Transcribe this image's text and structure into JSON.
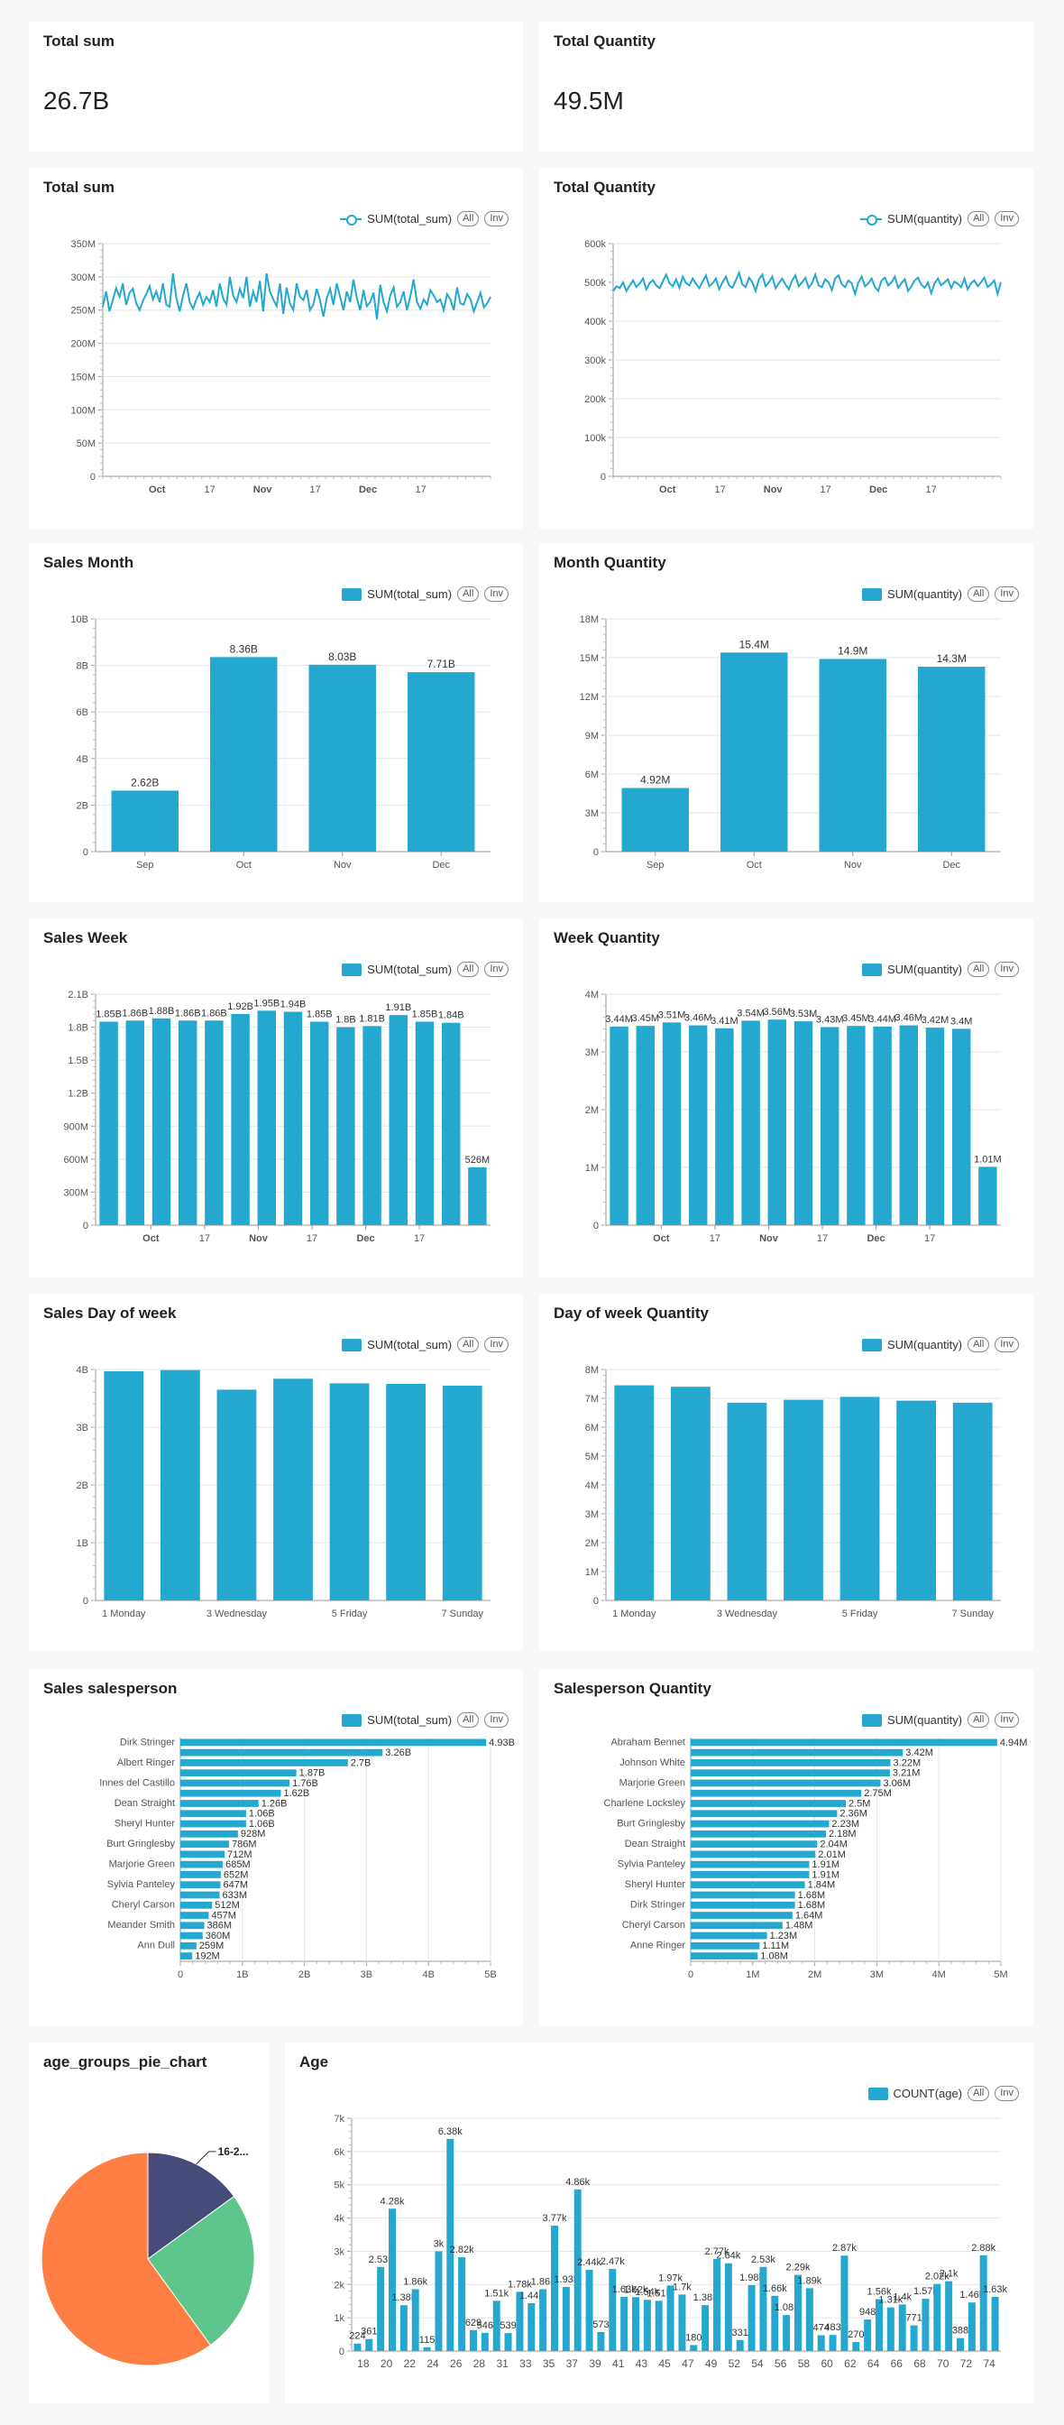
{
  "colors": {
    "bar": "#24a8cf",
    "pie_orange": "#fe7e44",
    "pie_green": "#5ec68c",
    "pie_navy": "#474b7a"
  },
  "legend_buttons": {
    "all": "All",
    "inv": "Inv"
  },
  "kpis": [
    {
      "title": "Total sum",
      "value": "26.7B"
    },
    {
      "title": "Total Quantity",
      "value": "49.5M"
    }
  ],
  "chart_data": [
    {
      "id": "total_sum_line",
      "type": "line",
      "title": "Total sum",
      "legend": "SUM(total_sum)",
      "ylim": [
        0,
        350000000
      ],
      "yticks": [
        "0",
        "50M",
        "100M",
        "150M",
        "200M",
        "250M",
        "300M",
        "350M"
      ],
      "xticks": [
        "Oct",
        "17",
        "Nov",
        "17",
        "Dec",
        "17"
      ],
      "series": [
        {
          "name": "SUM(total_sum)",
          "values": [
            255,
            278,
            248,
            265,
            283,
            270,
            290,
            258,
            276,
            282,
            260,
            250,
            264,
            274,
            286,
            266,
            278,
            262,
            290,
            258,
            255,
            305,
            268,
            248,
            272,
            290,
            262,
            252,
            266,
            276,
            258,
            270,
            262,
            280,
            255,
            290,
            268,
            258,
            300,
            272,
            262,
            282,
            268,
            300,
            255,
            278,
            262,
            294,
            248,
            305,
            278,
            266,
            256,
            290,
            244,
            284,
            260,
            250,
            290,
            270,
            265,
            280,
            250,
            258,
            282,
            265,
            240,
            268,
            282,
            258,
            290,
            270,
            250,
            278,
            262,
            296,
            268,
            250,
            280,
            256,
            262,
            276,
            236,
            288,
            262,
            248,
            272,
            284,
            255,
            262,
            278,
            250,
            270,
            296,
            262,
            252,
            266,
            258,
            280,
            272,
            262,
            266,
            250,
            274,
            266,
            250,
            284,
            260,
            258,
            274,
            266,
            248,
            262,
            276,
            254,
            260,
            270
          ]
        }
      ]
    },
    {
      "id": "total_qty_line",
      "type": "line",
      "title": "Total Quantity",
      "legend": "SUM(quantity)",
      "ylim": [
        0,
        600000
      ],
      "yticks": [
        "0",
        "100k",
        "200k",
        "300k",
        "400k",
        "500k",
        "600k"
      ],
      "xticks": [
        "Oct",
        "17",
        "Nov",
        "17",
        "Dec",
        "17"
      ],
      "series": [
        {
          "name": "SUM(quantity)",
          "values": [
            478,
            490,
            485,
            500,
            478,
            492,
            505,
            488,
            497,
            510,
            482,
            498,
            506,
            492,
            485,
            503,
            520,
            498,
            490,
            508,
            486,
            515,
            498,
            492,
            510,
            496,
            485,
            502,
            518,
            490,
            498,
            510,
            482,
            500,
            515,
            492,
            486,
            505,
            525,
            495,
            488,
            512,
            500,
            478,
            508,
            520,
            490,
            500,
            515,
            485,
            498,
            510,
            495,
            482,
            505,
            518,
            490,
            500,
            512,
            486,
            498,
            520,
            492,
            488,
            508,
            500,
            480,
            510,
            518,
            495,
            488,
            505,
            498,
            470,
            500,
            515,
            490,
            498,
            510,
            488,
            478,
            505,
            512,
            492,
            500,
            515,
            486,
            498,
            508,
            478,
            490,
            505,
            512,
            494,
            486,
            500,
            472,
            498,
            510,
            492,
            500,
            508,
            485,
            502,
            496,
            488,
            510,
            482,
            498,
            505,
            490,
            500,
            512,
            488,
            495,
            505,
            470,
            500
          ]
        }
      ]
    },
    {
      "id": "sales_month",
      "type": "bar",
      "title": "Sales Month",
      "legend": "SUM(total_sum)",
      "ylim": [
        0,
        10000000000
      ],
      "yticks": [
        "0",
        "2B",
        "4B",
        "6B",
        "8B",
        "10B"
      ],
      "categories": [
        "Sep",
        "Oct",
        "Nov",
        "Dec"
      ],
      "values": [
        2.62,
        8.36,
        8.03,
        7.71
      ],
      "labels": [
        "2.62B",
        "8.36B",
        "8.03B",
        "7.71B"
      ]
    },
    {
      "id": "month_qty",
      "type": "bar",
      "title": "Month Quantity",
      "legend": "SUM(quantity)",
      "ylim": [
        0,
        18000000
      ],
      "yticks": [
        "0",
        "3M",
        "6M",
        "9M",
        "12M",
        "15M",
        "18M"
      ],
      "categories": [
        "Sep",
        "Oct",
        "Nov",
        "Dec"
      ],
      "values": [
        4.92,
        15.4,
        14.9,
        14.3
      ],
      "labels": [
        "4.92M",
        "15.4M",
        "14.9M",
        "14.3M"
      ]
    },
    {
      "id": "sales_week",
      "type": "bar",
      "title": "Sales Week",
      "legend": "SUM(total_sum)",
      "ylim": [
        0,
        2100000000
      ],
      "yticks": [
        "0",
        "300M",
        "600M",
        "900M",
        "1.2B",
        "1.5B",
        "1.8B",
        "2.1B"
      ],
      "xticks": [
        "Oct",
        "17",
        "Nov",
        "17",
        "Dec",
        "17"
      ],
      "values": [
        1.85,
        1.86,
        1.88,
        1.86,
        1.86,
        1.92,
        1.95,
        1.94,
        1.85,
        1.8,
        1.81,
        1.91,
        1.85,
        1.84,
        0.526
      ],
      "labels": [
        "1.85B",
        "1.86B",
        "1.88B",
        "1.86B",
        "1.86B",
        "1.92B",
        "1.95B",
        "1.94B",
        "1.85B",
        "1.8B",
        "1.81B",
        "1.91B",
        "1.85B",
        "1.84B",
        "526M"
      ]
    },
    {
      "id": "week_qty",
      "type": "bar",
      "title": "Week Quantity",
      "legend": "SUM(quantity)",
      "ylim": [
        0,
        4000000
      ],
      "yticks": [
        "0",
        "1M",
        "2M",
        "3M",
        "4M"
      ],
      "xticks": [
        "Oct",
        "17",
        "Nov",
        "17",
        "Dec",
        "17"
      ],
      "values": [
        3.44,
        3.45,
        3.51,
        3.46,
        3.41,
        3.54,
        3.56,
        3.53,
        3.43,
        3.45,
        3.44,
        3.46,
        3.42,
        3.4,
        1.01
      ],
      "labels": [
        "3.44M",
        "3.45M",
        "3.51M",
        "3.46M",
        "3.41M",
        "3.54M",
        "3.56M",
        "3.53M",
        "3.43M",
        "3.45M",
        "3.44M",
        "3.46M",
        "3.42M",
        "3.4M",
        "1.01M"
      ]
    },
    {
      "id": "sales_dow",
      "type": "bar",
      "title": "Sales Day of week",
      "legend": "SUM(total_sum)",
      "ylim": [
        0,
        4000000000
      ],
      "yticks": [
        "0",
        "1B",
        "2B",
        "3B",
        "4B"
      ],
      "categories": [
        "1 Monday",
        "2 Tuesday",
        "3 Wednesday",
        "4 Thursday",
        "5 Friday",
        "6 Saturday",
        "7 Sunday"
      ],
      "xticks": [
        "1 Monday",
        "3 Wednesday",
        "5 Friday",
        "7 Sunday"
      ],
      "values": [
        3.97,
        3.99,
        3.65,
        3.84,
        3.76,
        3.75,
        3.72
      ]
    },
    {
      "id": "dow_qty",
      "type": "bar",
      "title": "Day of week Quantity",
      "legend": "SUM(quantity)",
      "ylim": [
        0,
        8000000
      ],
      "yticks": [
        "0",
        "1M",
        "2M",
        "3M",
        "4M",
        "5M",
        "6M",
        "7M",
        "8M"
      ],
      "categories": [
        "1 Monday",
        "2 Tuesday",
        "3 Wednesday",
        "4 Thursday",
        "5 Friday",
        "6 Saturday",
        "7 Sunday"
      ],
      "xticks": [
        "1 Monday",
        "3 Wednesday",
        "5 Friday",
        "7 Sunday"
      ],
      "values": [
        7.45,
        7.4,
        6.85,
        6.95,
        7.05,
        6.92,
        6.85
      ]
    },
    {
      "id": "sales_salesperson",
      "type": "hbar",
      "title": "Sales salesperson",
      "legend": "SUM(total_sum)",
      "xlim": [
        0,
        5000000000
      ],
      "xticks": [
        "0",
        "1B",
        "2B",
        "3B",
        "4B",
        "5B"
      ],
      "people": [
        "Dirk Stringer",
        "Albert Ringer",
        "Innes del Castillo",
        "Dean Straight",
        "Sheryl Hunter",
        "Burt Gringlesby",
        "Marjorie Green",
        "Sylvia Panteley",
        "Cheryl Carson",
        "Meander Smith",
        "Ann Dull"
      ],
      "values": [
        4.93,
        3.26,
        2.7,
        1.87,
        1.76,
        1.62,
        1.26,
        1.06,
        1.06,
        0.928,
        0.786,
        0.712,
        0.685,
        0.652,
        0.647,
        0.633,
        0.512,
        0.457,
        0.386,
        0.36,
        0.259,
        0.192
      ],
      "labels": [
        "4.93B",
        "3.26B",
        "2.7B",
        "1.87B",
        "1.76B",
        "1.62B",
        "1.26B",
        "1.06B",
        "1.06B",
        "928M",
        "786M",
        "712M",
        "685M",
        "652M",
        "647M",
        "633M",
        "512M",
        "457M",
        "386M",
        "360M",
        "259M",
        "192M"
      ]
    },
    {
      "id": "salesperson_qty",
      "type": "hbar",
      "title": "Salesperson Quantity",
      "legend": "SUM(quantity)",
      "xlim": [
        0,
        5000000
      ],
      "xticks": [
        "0",
        "1M",
        "2M",
        "3M",
        "4M",
        "5M"
      ],
      "people": [
        "Abraham Bennet",
        "Johnson White",
        "Marjorie Green",
        "Charlene Locksley",
        "Burt Gringlesby",
        "Dean Straight",
        "Sylvia Panteley",
        "Sheryl Hunter",
        "Dirk Stringer",
        "Cheryl Carson",
        "Anne Ringer"
      ],
      "values": [
        4.94,
        3.42,
        3.22,
        3.21,
        3.06,
        2.75,
        2.5,
        2.36,
        2.23,
        2.18,
        2.04,
        2.01,
        1.91,
        1.91,
        1.84,
        1.68,
        1.68,
        1.64,
        1.48,
        1.23,
        1.11,
        1.08
      ],
      "labels": [
        "4.94M",
        "3.42M",
        "3.22M",
        "3.21M",
        "3.06M",
        "2.75M",
        "2.5M",
        "2.36M",
        "2.23M",
        "2.18M",
        "2.04M",
        "2.01M",
        "1.91M",
        "1.91M",
        "1.84M",
        "1.68M",
        "1.68M",
        "1.64M",
        "1.48M",
        "1.23M",
        "1.11M",
        "1.08M"
      ]
    },
    {
      "id": "age_groups_pie",
      "type": "pie",
      "title": "age_groups_pie_chart",
      "slices": [
        {
          "label": "16-2...",
          "value": 15,
          "color": "#474b7a"
        },
        {
          "label": "",
          "value": 25,
          "color": "#5ec68c"
        },
        {
          "label": "",
          "value": 60,
          "color": "#fe7e44"
        }
      ]
    },
    {
      "id": "age",
      "type": "bar",
      "title": "Age",
      "legend": "COUNT(age)",
      "ylim": [
        0,
        7000
      ],
      "yticks": [
        "0",
        "1k",
        "2k",
        "3k",
        "4k",
        "5k",
        "6k",
        "7k"
      ],
      "xticks": [
        "18",
        "20",
        "22",
        "24",
        "26",
        "28",
        "31",
        "33",
        "35",
        "37",
        "39",
        "41",
        "43",
        "45",
        "47",
        "49",
        "52",
        "54",
        "56",
        "58",
        "60",
        "62",
        "64",
        "66",
        "68",
        "70",
        "72",
        "74"
      ],
      "values": [
        224,
        361,
        2530,
        4280,
        1380,
        1860,
        115,
        3000,
        6380,
        2820,
        629,
        546,
        1510,
        539,
        1780,
        1440,
        1860,
        3770,
        1930,
        4860,
        2440,
        573,
        2470,
        1630,
        1620,
        1540,
        1510,
        1970,
        1700,
        180,
        1380,
        2770,
        2640,
        331,
        1980,
        2530,
        1660,
        1080,
        2290,
        1890,
        474,
        483,
        2870,
        270,
        948,
        1560,
        1310,
        1400,
        771,
        1570,
        2020,
        2100,
        388,
        1460,
        2880,
        1630
      ],
      "labels": [
        "224",
        "361",
        "2.53k",
        "4.28k",
        "1.38k",
        "1.86k",
        "115",
        "3k",
        "6.38k",
        "2.82k",
        "629",
        "546",
        "1.51k",
        "539",
        "1.78k",
        "1.44k",
        "1.86k",
        "3.77k",
        "1.93k",
        "4.86k",
        "2.44k",
        "573",
        "2.47k",
        "1.63k",
        "1.62k",
        "1.54k",
        "1.51k",
        "1.97k",
        "1.7k",
        "180",
        "1.38k",
        "2.77k",
        "2.64k",
        "331",
        "1.98k",
        "2.53k",
        "1.66k",
        "1.08k",
        "2.29k",
        "1.89k",
        "474",
        "483",
        "2.87k",
        "270",
        "948",
        "1.56k",
        "1.31k",
        "1.4k",
        "771",
        "1.57k",
        "2.02k",
        "2.1k",
        "388",
        "1.46k",
        "2.88k",
        "1.63k"
      ]
    }
  ]
}
